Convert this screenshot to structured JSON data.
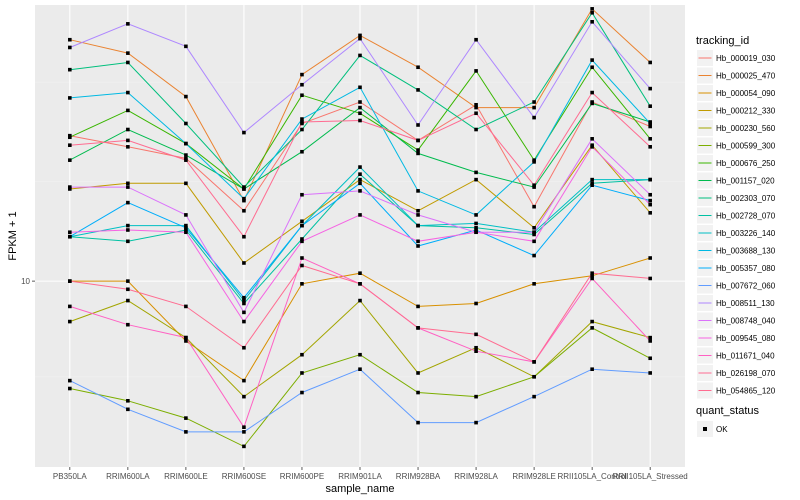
{
  "chart_data": {
    "type": "line",
    "title": "",
    "xlabel": "sample_name",
    "ylabel": "FPKM + 1",
    "y_scale": "log10",
    "yticks": [
      10
    ],
    "ytick_labels": [
      "10"
    ],
    "ylim": [
      5.0,
      28.0
    ],
    "grid": true,
    "legend_position": "right",
    "categories": [
      "PB350LA",
      "RRIM600LA",
      "RRIM600LE",
      "RRIM600SE",
      "RRIM600PE",
      "RRIM901LA",
      "RRIM928BA",
      "RRIM928LA",
      "RRIM928LE",
      "RRII105LA_Control",
      "RRII105LA_Stressed"
    ],
    "color_legend_title": "tracking_id",
    "shape_legend_title": "quant_status",
    "shape_legend_items": [
      "OK"
    ],
    "series": [
      {
        "name": "Hb_000019_030",
        "color": "#F8766D",
        "values": [
          17.2,
          16.5,
          15.8,
          13.0,
          18.0,
          19.5,
          16.9,
          19.3,
          13.2,
          19.5,
          17.8
        ]
      },
      {
        "name": "Hb_000025_470",
        "color": "#EA8331",
        "values": [
          24.6,
          23.4,
          19.9,
          13.5,
          21.6,
          25.0,
          22.2,
          19.1,
          19.1,
          27.6,
          22.6
        ]
      },
      {
        "name": "Hb_000054_090",
        "color": "#D89000",
        "values": [
          10.0,
          10.0,
          8.0,
          6.9,
          9.9,
          10.3,
          9.1,
          9.2,
          9.9,
          10.2,
          10.9
        ]
      },
      {
        "name": "Hb_000212_330",
        "color": "#C09B00",
        "values": [
          14.1,
          14.4,
          14.4,
          10.7,
          12.5,
          14.6,
          13.0,
          14.6,
          12.2,
          16.6,
          12.9
        ]
      },
      {
        "name": "Hb_000230_560",
        "color": "#A3A500",
        "values": [
          8.6,
          9.3,
          8.1,
          6.5,
          7.6,
          9.3,
          7.1,
          7.8,
          7.0,
          8.6,
          8.1
        ]
      },
      {
        "name": "Hb_000599_300",
        "color": "#7CAE00",
        "values": [
          6.7,
          6.4,
          6.0,
          5.4,
          7.1,
          7.6,
          6.6,
          6.5,
          7.0,
          8.4,
          7.5
        ]
      },
      {
        "name": "Hb_000676_250",
        "color": "#39B600",
        "values": [
          17.1,
          18.9,
          16.7,
          14.1,
          20.0,
          18.7,
          16.3,
          21.9,
          15.7,
          22.2,
          17.0
        ]
      },
      {
        "name": "Hb_001157_020",
        "color": "#00BB4E",
        "values": [
          15.7,
          17.6,
          16.0,
          14.1,
          16.2,
          19.1,
          16.1,
          15.0,
          14.2,
          19.4,
          18.1
        ]
      },
      {
        "name": "Hb_002303_070",
        "color": "#00BF7D",
        "values": [
          22.0,
          22.6,
          18.0,
          14.2,
          17.6,
          23.2,
          20.4,
          17.6,
          19.5,
          27.2,
          19.2
        ]
      },
      {
        "name": "Hb_002728_070",
        "color": "#00C1A3",
        "values": [
          11.8,
          11.6,
          12.1,
          9.2,
          11.7,
          14.9,
          12.3,
          12.2,
          11.9,
          14.4,
          14.6
        ]
      },
      {
        "name": "Hb_003226_140",
        "color": "#00BFC4",
        "values": [
          11.8,
          12.3,
          12.3,
          9.3,
          12.3,
          15.3,
          12.3,
          12.4,
          12.0,
          14.6,
          14.6
        ]
      },
      {
        "name": "Hb_003688_130",
        "color": "#00B9E3",
        "values": [
          19.8,
          20.2,
          16.7,
          13.6,
          18.3,
          20.6,
          14.0,
          12.8,
          15.6,
          22.8,
          18.0
        ]
      },
      {
        "name": "Hb_005357_080",
        "color": "#00ADFA",
        "values": [
          11.8,
          13.4,
          12.2,
          9.4,
          12.3,
          14.4,
          11.4,
          12.1,
          11.0,
          14.3,
          13.5
        ]
      },
      {
        "name": "Hb_007672_060",
        "color": "#619CFF",
        "values": [
          6.9,
          6.2,
          5.7,
          5.7,
          6.6,
          7.2,
          5.9,
          5.9,
          6.5,
          7.2,
          7.1
        ]
      },
      {
        "name": "Hb_008511_130",
        "color": "#AE87FF",
        "values": [
          23.9,
          26.1,
          24.0,
          17.4,
          20.8,
          24.7,
          17.9,
          24.6,
          18.4,
          26.3,
          20.5
        ]
      },
      {
        "name": "Hb_008748_040",
        "color": "#DB72FB",
        "values": [
          14.2,
          14.2,
          12.8,
          8.9,
          13.8,
          14.0,
          12.8,
          12.0,
          12.0,
          17.0,
          13.8
        ]
      },
      {
        "name": "Hb_009545_080",
        "color": "#F564E3",
        "values": [
          12.0,
          12.1,
          12.0,
          8.6,
          11.6,
          12.8,
          11.6,
          12.0,
          11.6,
          16.5,
          13.3
        ]
      },
      {
        "name": "Hb_011671_040",
        "color": "#FF61C3",
        "values": [
          9.1,
          8.5,
          8.1,
          5.8,
          10.9,
          9.9,
          8.4,
          7.7,
          7.4,
          10.1,
          8.0
        ]
      },
      {
        "name": "Hb_026198_070",
        "color": "#FF6C91",
        "values": [
          10.0,
          9.7,
          9.1,
          7.8,
          10.6,
          9.9,
          8.4,
          8.2,
          7.4,
          10.3,
          10.1
        ]
      },
      {
        "name": "Hb_054865_120",
        "color": "#FF6C91",
        "values": [
          16.6,
          16.9,
          15.7,
          11.8,
          18.1,
          18.2,
          16.9,
          18.7,
          14.3,
          20.2,
          16.5
        ]
      }
    ]
  }
}
